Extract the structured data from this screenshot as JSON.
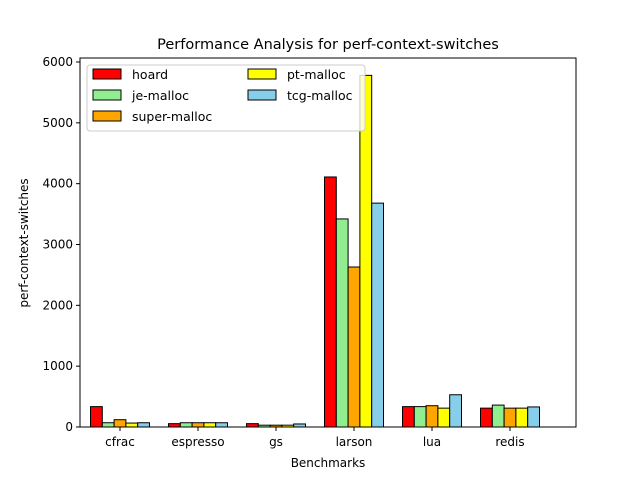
{
  "chart_data": {
    "type": "bar",
    "title": "Performance Analysis for perf-context-switches",
    "xlabel": "Benchmarks",
    "ylabel": "perf-context-switches",
    "categories": [
      "cfrac",
      "espresso",
      "gs",
      "larson",
      "lua",
      "redis"
    ],
    "ylim": [
      0,
      6000
    ],
    "yticks": [
      "0",
      "1000",
      "2000",
      "3000",
      "4000",
      "5000",
      "6000"
    ],
    "grid": false,
    "legend_position": "top-left",
    "legend_columns": 2,
    "series": [
      {
        "name": "hoard",
        "color": "#ff0000",
        "values": [
          335,
          55,
          55,
          4110,
          335,
          310
        ]
      },
      {
        "name": "je-malloc",
        "color": "#90ee90",
        "values": [
          70,
          70,
          30,
          3420,
          335,
          360
        ]
      },
      {
        "name": "super-malloc",
        "color": "#ffa500",
        "values": [
          120,
          70,
          30,
          2630,
          350,
          310
        ]
      },
      {
        "name": "pt-malloc",
        "color": "#ffff00",
        "values": [
          65,
          70,
          30,
          5780,
          310,
          310
        ]
      },
      {
        "name": "tcg-malloc",
        "color": "#87ceeb",
        "values": [
          70,
          70,
          50,
          3680,
          530,
          330
        ]
      }
    ]
  }
}
